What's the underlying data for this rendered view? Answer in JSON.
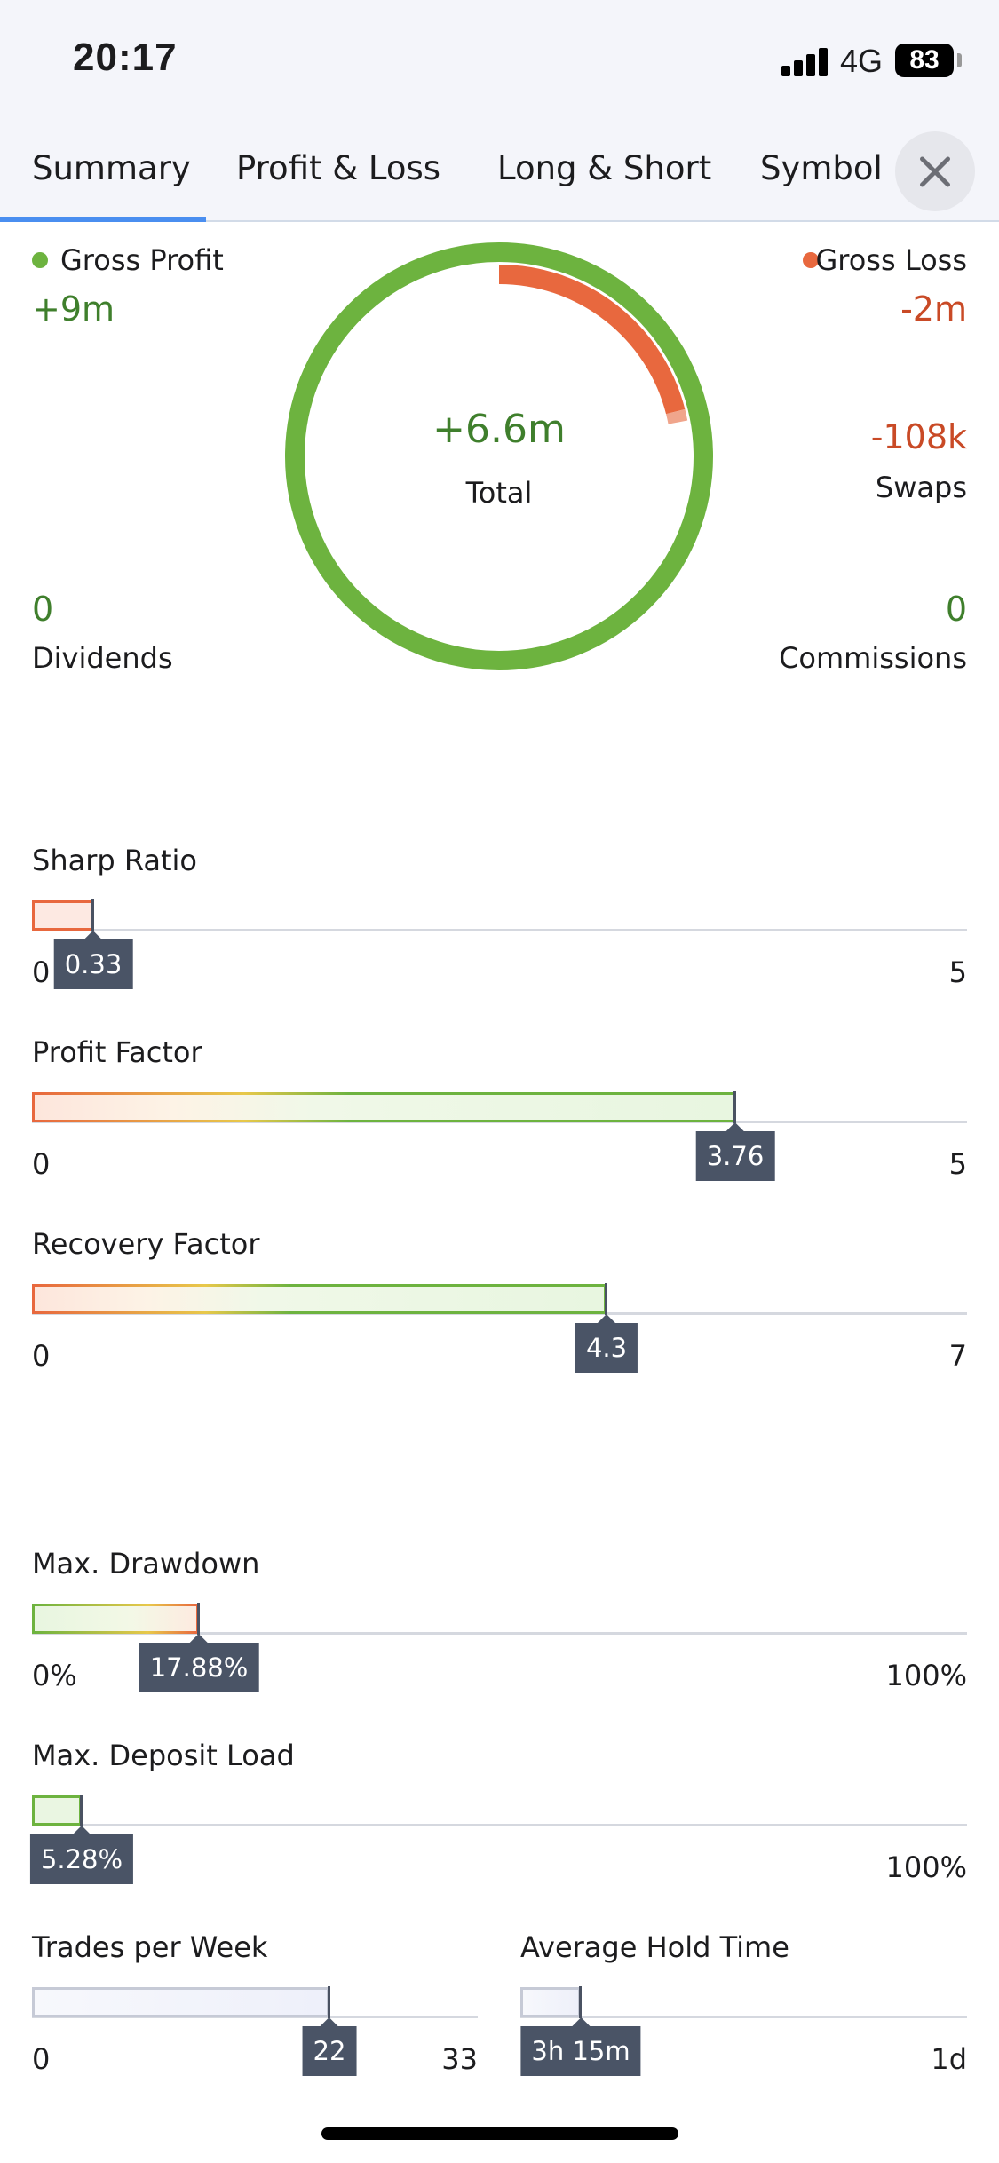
{
  "status_bar": {
    "time": "20:17",
    "network": "4G",
    "battery": "83"
  },
  "tabs": [
    {
      "label": "Summary",
      "active": true
    },
    {
      "label": "Profit & Loss",
      "active": false
    },
    {
      "label": "Long & Short",
      "active": false
    },
    {
      "label": "Symbol",
      "active": false
    }
  ],
  "colors": {
    "profit": "#6db33f",
    "loss": "#e8683e",
    "tab_active": "#4a8ef0",
    "tooltip": "#4a5466"
  },
  "summary": {
    "gross_profit": {
      "label": "Gross Profit",
      "value": "+9m"
    },
    "gross_loss": {
      "label": "Gross Loss",
      "value": "-2m"
    },
    "total": {
      "label": "Total",
      "value": "+6.6m"
    },
    "swaps": {
      "label": "Swaps",
      "value": "-108k"
    },
    "dividends": {
      "label": "Dividends",
      "value": "0"
    },
    "commissions": {
      "label": "Commissions",
      "value": "0"
    },
    "donut_loss_fraction": 0.22
  },
  "gauges": {
    "sharp_ratio": {
      "title": "Sharp Ratio",
      "min": "0",
      "max": "5",
      "value": "0.33",
      "fraction": 0.066
    },
    "profit_factor": {
      "title": "Profit Factor",
      "min": "0",
      "max": "5",
      "value": "3.76",
      "fraction": 0.752
    },
    "recovery_factor": {
      "title": "Recovery Factor",
      "min": "0",
      "max": "7",
      "value": "4.3",
      "fraction": 0.614
    },
    "max_drawdown": {
      "title": "Max. Drawdown",
      "min": "0%",
      "max": "100%",
      "value": "17.88%",
      "fraction": 0.1788
    },
    "max_deposit_load": {
      "title": "Max. Deposit Load",
      "min": "0",
      "max": "100%",
      "value": "5.28%",
      "fraction": 0.0528
    },
    "trades_per_week": {
      "title": "Trades per Week",
      "min": "0",
      "max": "33",
      "value": "22",
      "fraction": 0.667
    },
    "average_hold_time": {
      "title": "Average Hold Time",
      "min": "0",
      "max": "1d",
      "value": "3h 15m",
      "fraction": 0.135
    }
  }
}
